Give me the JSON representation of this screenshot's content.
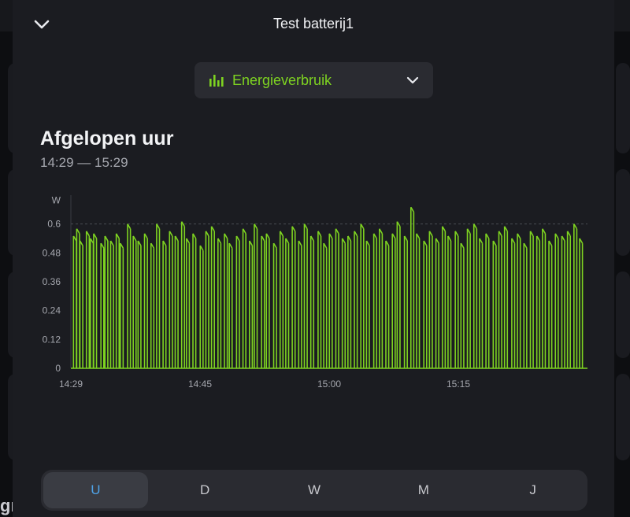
{
  "background": {
    "partial_text": "gı"
  },
  "header": {
    "title": "Test batterij1",
    "close_icon": "chevron-down-icon"
  },
  "dropdown": {
    "label": "Energieverbruik",
    "icon": "bar-chart-icon",
    "chevron": "chevron-down-icon",
    "accent": "#7ed321"
  },
  "period": {
    "title": "Afgelopen uur",
    "range": "14:29 — 15:29"
  },
  "tabs": [
    {
      "label": "U",
      "active": true
    },
    {
      "label": "D",
      "active": false
    },
    {
      "label": "W",
      "active": false
    },
    {
      "label": "M",
      "active": false
    },
    {
      "label": "J",
      "active": false
    }
  ],
  "chart_data": {
    "type": "area",
    "ylabel": "W",
    "ylim": [
      0,
      0.72
    ],
    "y_ticks": [
      "0",
      "0.12",
      "0.24",
      "0.36",
      "0.48",
      "0.6"
    ],
    "x_ticks": [
      "14:29",
      "14:45",
      "15:00",
      "15:15"
    ],
    "x_range_minutes": [
      0,
      64
    ],
    "x_tick_minutes": [
      0,
      16,
      32,
      48
    ],
    "grid_y": [
      0.6
    ],
    "color": "#7ed321",
    "series": [
      {
        "x": [
          0.5,
          0.9,
          1.3,
          2.1,
          2.6,
          3.0,
          3.9,
          4.4,
          5.1,
          5.8,
          6.3,
          7.2,
          7.9,
          8.5,
          9.3,
          10.1,
          10.8,
          11.6,
          12.4,
          13.1,
          13.9,
          14.5,
          15.3,
          16.2,
          16.9,
          17.6,
          18.4,
          19.2,
          19.8,
          20.7,
          21.5,
          22.3,
          22.9,
          23.8,
          24.4,
          25.3,
          26.1,
          26.8,
          27.6,
          28.4,
          29.1,
          29.9,
          30.8,
          31.5,
          32.2,
          33.0,
          33.8,
          34.5,
          35.3,
          36.1,
          36.8,
          37.7,
          38.4,
          39.2,
          40.0,
          40.6,
          41.5,
          42.3,
          43.0,
          43.9,
          44.6,
          45.4,
          46.2,
          46.9,
          47.8,
          48.5,
          49.3,
          50.1,
          50.8,
          51.6,
          52.5,
          53.2,
          53.9,
          54.8,
          55.5,
          56.3,
          57.1,
          57.9,
          58.6,
          59.4,
          60.2,
          61.0,
          61.7,
          62.5,
          63.2
        ],
        "y": [
          0.55,
          0.58,
          0.53,
          0.57,
          0.54,
          0.56,
          0.52,
          0.55,
          0.53,
          0.56,
          0.52,
          0.6,
          0.55,
          0.53,
          0.56,
          0.52,
          0.6,
          0.53,
          0.57,
          0.55,
          0.61,
          0.54,
          0.56,
          0.51,
          0.57,
          0.59,
          0.54,
          0.56,
          0.52,
          0.55,
          0.58,
          0.53,
          0.6,
          0.55,
          0.56,
          0.52,
          0.57,
          0.54,
          0.59,
          0.53,
          0.6,
          0.55,
          0.57,
          0.52,
          0.56,
          0.58,
          0.54,
          0.55,
          0.57,
          0.6,
          0.53,
          0.56,
          0.58,
          0.53,
          0.56,
          0.61,
          0.55,
          0.67,
          0.56,
          0.53,
          0.57,
          0.54,
          0.59,
          0.55,
          0.57,
          0.52,
          0.58,
          0.6,
          0.54,
          0.56,
          0.53,
          0.57,
          0.59,
          0.54,
          0.56,
          0.52,
          0.57,
          0.55,
          0.58,
          0.53,
          0.56,
          0.55,
          0.57,
          0.6,
          0.54
        ]
      }
    ]
  }
}
